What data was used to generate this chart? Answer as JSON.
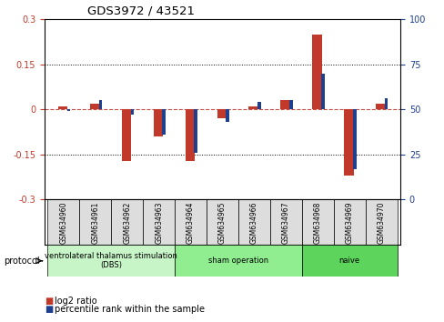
{
  "title": "GDS3972 / 43521",
  "samples": [
    "GSM634960",
    "GSM634961",
    "GSM634962",
    "GSM634963",
    "GSM634964",
    "GSM634965",
    "GSM634966",
    "GSM634967",
    "GSM634968",
    "GSM634969",
    "GSM634970"
  ],
  "log2_ratio": [
    0.01,
    0.02,
    -0.17,
    -0.09,
    -0.17,
    -0.03,
    0.01,
    0.03,
    0.25,
    -0.22,
    0.02
  ],
  "percentile_rank": [
    49,
    55,
    47,
    36,
    26,
    43,
    54,
    55,
    70,
    17,
    56
  ],
  "ylim_left": [
    -0.3,
    0.3
  ],
  "ylim_right": [
    0,
    100
  ],
  "yticks_left": [
    -0.3,
    -0.15,
    0.0,
    0.15,
    0.3
  ],
  "yticks_right": [
    0,
    25,
    50,
    75,
    100
  ],
  "bar_color_red": "#C0392B",
  "bar_color_blue": "#1F3F8F",
  "dotted_color": "#333333",
  "protocol_label": "protocol",
  "legend_red": "log2 ratio",
  "legend_blue": "percentile rank within the sample",
  "proto_groups": [
    {
      "start": 0,
      "end": 4,
      "color": "#C8F5C8",
      "label": "ventrolateral thalamus stimulation\n(DBS)"
    },
    {
      "start": 4,
      "end": 8,
      "color": "#90EE90",
      "label": "sham operation"
    },
    {
      "start": 8,
      "end": 11,
      "color": "#5DD55D",
      "label": "naive"
    }
  ]
}
